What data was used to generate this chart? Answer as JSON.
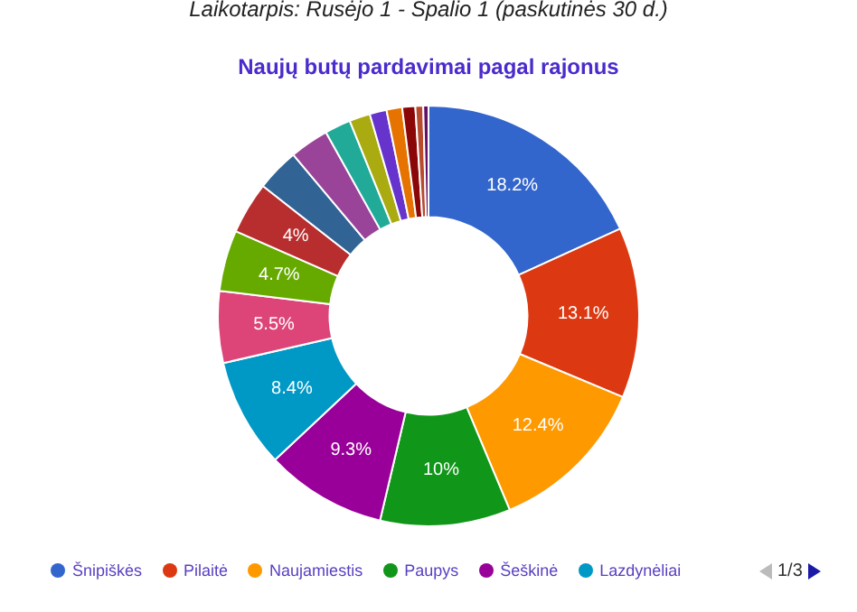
{
  "chart_data": {
    "type": "donut",
    "subtitle": "Laikotarpis: Rusėjo 1 - Spalio 1 (paskutinės 30 d.)",
    "title": "Naujų butų pardavimai pagal rajonus",
    "categories": [
      "Šnipiškės",
      "Pilaitė",
      "Naujamiestis",
      "Paupys",
      "Šeškinė",
      "Lazdynėliai",
      null,
      null,
      null,
      null,
      null,
      null,
      null,
      null,
      null,
      null,
      null,
      null
    ],
    "values": [
      18.2,
      13.1,
      12.4,
      10,
      9.3,
      8.4,
      5.5,
      4.7,
      4,
      3.3,
      3,
      2,
      1.6,
      1.3,
      1.2,
      1,
      0.6,
      0.4
    ],
    "colors": [
      "#3366cc",
      "#dc3912",
      "#ff9900",
      "#109618",
      "#990099",
      "#0099c6",
      "#dd4477",
      "#66aa00",
      "#b82e2e",
      "#316395",
      "#994499",
      "#22aa99",
      "#aaaa11",
      "#6633cc",
      "#e67300",
      "#8b0707",
      "#b84a2e",
      "#651067"
    ],
    "value_labels": [
      "18.2%",
      "13.1%",
      "12.4%",
      "10%",
      "9.3%",
      "8.4%",
      "5.5%",
      "4.7%",
      "4%",
      null,
      null,
      null,
      null,
      null,
      null,
      null,
      null,
      null
    ],
    "legend": "bottom",
    "annotations": [
      "1/3"
    ]
  }
}
